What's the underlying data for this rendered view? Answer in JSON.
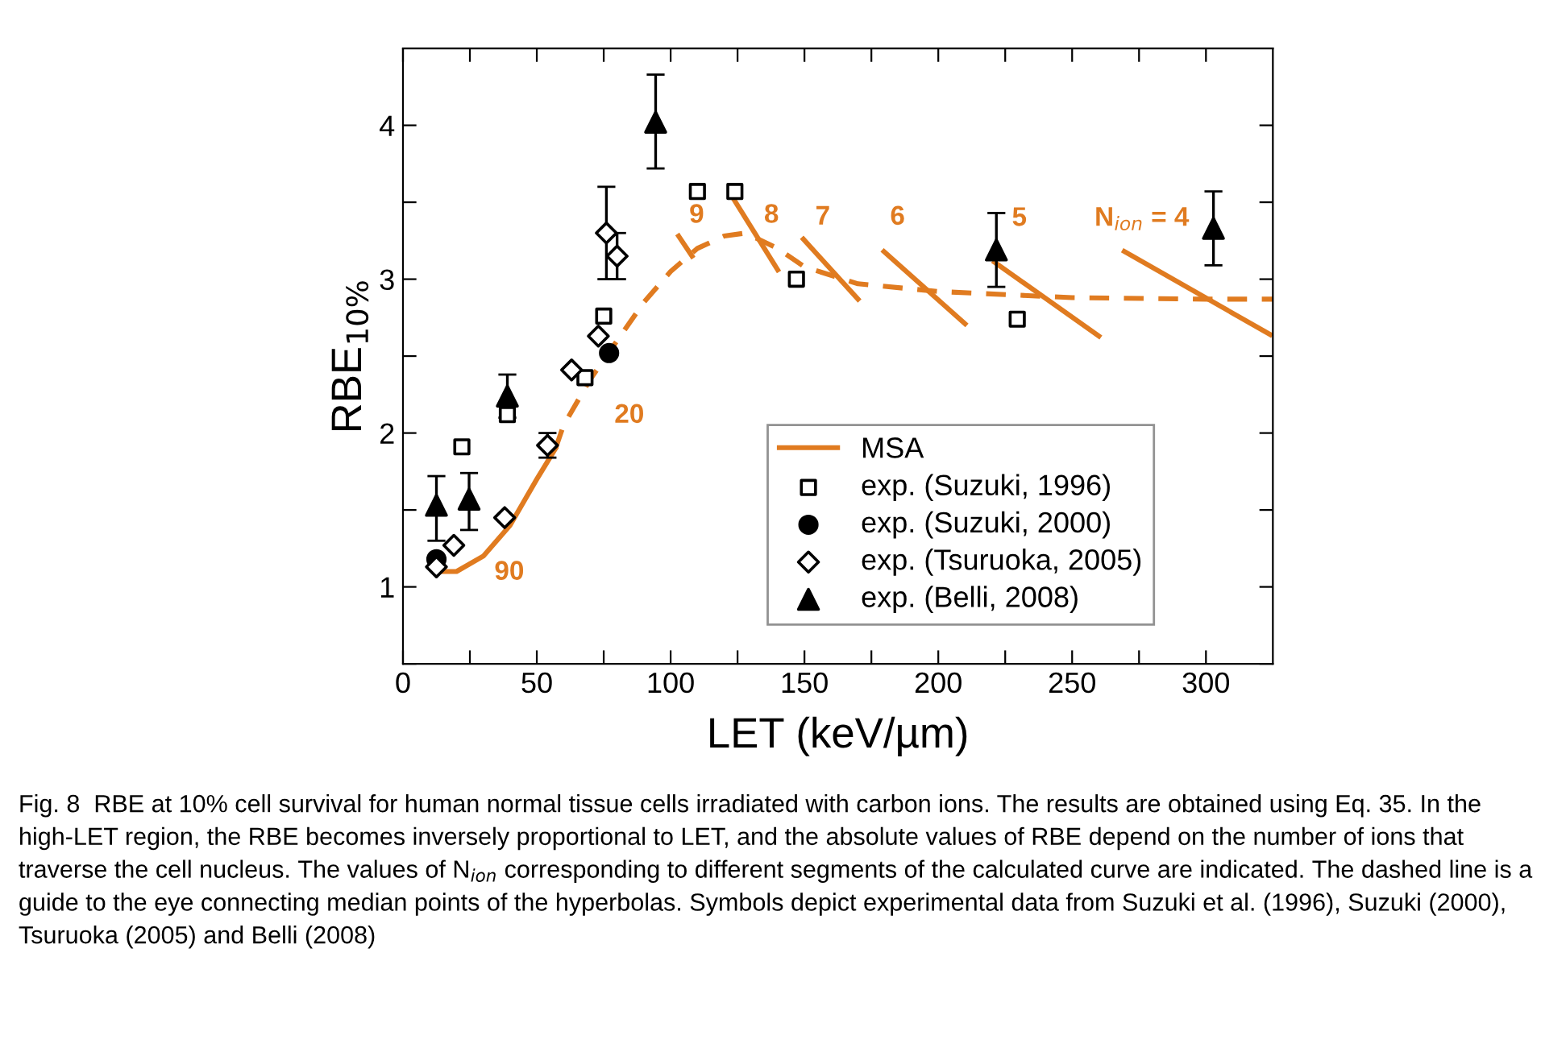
{
  "chart_data": {
    "type": "scatter",
    "xlabel": "LET (keV/µm)",
    "ylabel": "RBE$_{10%}$",
    "xlim": [
      0,
      325
    ],
    "ylim": [
      0.5,
      4.5
    ],
    "xticks": [
      0,
      {
        "value": 25,
        "label": null
      },
      50,
      {
        "value": 75,
        "label": null
      },
      100,
      {
        "value": 125,
        "label": null
      },
      150,
      {
        "value": 175,
        "label": null
      },
      200,
      {
        "value": 225,
        "label": null
      },
      250,
      {
        "value": 275,
        "label": null
      },
      300
    ],
    "yticks": [
      {
        "value": 0.5,
        "label": null
      },
      1,
      {
        "value": 1.5,
        "label": null
      },
      2,
      {
        "value": 2.5,
        "label": null
      },
      3,
      {
        "value": 3.5,
        "label": null
      },
      4
    ],
    "grid": false,
    "legend": "bottom right",
    "series": [
      {
        "name": "MSA",
        "type": "line",
        "color": "#e07b20",
        "line_style": "solid",
        "marker": "none",
        "x": [
          12,
          20,
          30,
          40,
          50,
          57
        ],
        "values": [
          1.1,
          1.1,
          1.2,
          1.4,
          1.7,
          1.9
        ]
      },
      {
        "type": "line",
        "color": "#e07b20",
        "line_style": "dashed",
        "marker": "none",
        "x": [
          57,
          60,
          70,
          80,
          90,
          100,
          110,
          120,
          128,
          140,
          150,
          170,
          200,
          250,
          300,
          325
        ],
        "values": [
          1.9,
          2.05,
          2.35,
          2.6,
          2.85,
          3.05,
          3.2,
          3.28,
          3.3,
          3.2,
          3.08,
          2.97,
          2.92,
          2.88,
          2.87,
          2.87
        ]
      },
      {
        "type": "line",
        "color": "#e07b20",
        "line_style": "solid",
        "marker": "none",
        "x": [
          103,
          108
        ],
        "values": [
          3.28,
          3.15
        ]
      },
      {
        "type": "line",
        "color": "#e07b20",
        "line_style": "solid",
        "marker": "none",
        "x": [
          122.5,
          140
        ],
        "values": [
          3.55,
          3.06
        ]
      },
      {
        "type": "line",
        "color": "#e07b20",
        "line_style": "solid",
        "marker": "none",
        "x": [
          149.6,
          170
        ],
        "values": [
          3.26,
          2.87
        ]
      },
      {
        "type": "line",
        "color": "#e07b20",
        "line_style": "solid",
        "marker": "none",
        "x": [
          179.7,
          210
        ],
        "values": [
          3.18,
          2.71
        ]
      },
      {
        "type": "line",
        "color": "#e07b20",
        "line_style": "solid",
        "marker": "none",
        "x": [
          221,
          260
        ],
        "values": [
          3.11,
          2.63
        ]
      },
      {
        "type": "line",
        "color": "#e07b20",
        "line_style": "solid",
        "marker": "none",
        "x": [
          269.5,
          324
        ],
        "values": [
          3.18,
          2.64
        ]
      },
      {
        "name": "exp. (Suzuki, 1996)",
        "color": "#000000",
        "marker": "square",
        "x": [
          22,
          39,
          68,
          75,
          110,
          124,
          147,
          229.5
        ],
        "values": [
          1.91,
          2.12,
          2.36,
          2.76,
          3.57,
          3.57,
          3.0,
          2.74
        ]
      },
      {
        "name": "exp. (Suzuki, 2000)",
        "color": "#000000",
        "marker": "circle",
        "x": [
          12.5,
          77
        ],
        "values": [
          1.18,
          2.52
        ]
      },
      {
        "name": "exp. (Tsuruoka, 2005)",
        "color": "#000000",
        "marker": "diamond",
        "x": [
          12.5,
          19,
          38,
          54,
          63,
          73,
          76,
          80
        ],
        "values": [
          1.13,
          1.27,
          1.45,
          1.92,
          2.41,
          2.63,
          3.3,
          3.15
        ],
        "errors": [
          null,
          null,
          null,
          [
            1.84,
            2.0
          ],
          null,
          null,
          [
            3.0,
            3.6
          ],
          [
            3.0,
            3.3
          ]
        ]
      },
      {
        "name": "exp. (Belli, 2008)",
        "color": "#000000",
        "marker": "triangle",
        "x": [
          12.5,
          24.7,
          39,
          94.4,
          221.7,
          302.8
        ],
        "values": [
          1.53,
          1.57,
          2.24,
          4.02,
          3.19,
          3.33
        ],
        "errors": [
          [
            1.3,
            1.72
          ],
          [
            1.37,
            1.74
          ],
          [
            2.1,
            2.38
          ],
          [
            3.72,
            4.33
          ],
          [
            2.95,
            3.43
          ],
          [
            3.09,
            3.57
          ]
        ]
      }
    ],
    "annotations": [
      "90",
      "20",
      "9",
      "8",
      "7",
      "6",
      "5",
      "N$_{ion}$ = 4",
      "Fig. 8  RBE at 10% cell survival for human normal tissue cells irradiated with carbon ions. The results are obtained using Eq. 35. In the high-LET region, the RBE becomes inversely proportional to LET, and the absolute values of RBE depend on the number of ions that traverse the cell nucleus. The values of N$_{ion}$ corresponding to different segments of the calculated curve are indicated. The dashed line is a guide to the eye connecting median points of the hyperbolas. Symbols depict experimental data from Suzuki et al. (1996), Suzuki (2000), Tsuruoka (2005) and Belli (2008)"
    ]
  }
}
